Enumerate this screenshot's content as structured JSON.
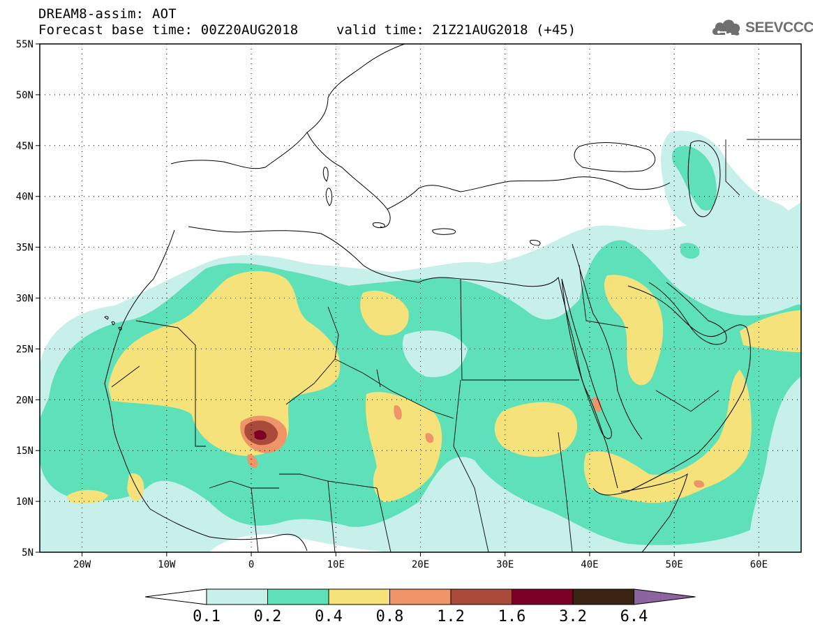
{
  "header": {
    "title": "DREAM8-assim: AOT",
    "base_time": "Forecast base time: 00Z20AUG2018",
    "valid_time": "valid time: 21Z21AUG2018 (+45)"
  },
  "logo": {
    "text": "SEEVCCC",
    "icon": "cloud-logo-icon"
  },
  "map": {
    "lon_range": [
      -25,
      65
    ],
    "lat_range": [
      5,
      55
    ],
    "lat_ticks": [
      {
        "value": 5,
        "label": "5N"
      },
      {
        "value": 10,
        "label": "10N"
      },
      {
        "value": 15,
        "label": "15N"
      },
      {
        "value": 20,
        "label": "20N"
      },
      {
        "value": 25,
        "label": "25N"
      },
      {
        "value": 30,
        "label": "30N"
      },
      {
        "value": 35,
        "label": "35N"
      },
      {
        "value": 40,
        "label": "40N"
      },
      {
        "value": 45,
        "label": "45N"
      },
      {
        "value": 50,
        "label": "50N"
      },
      {
        "value": 55,
        "label": "55N"
      }
    ],
    "lon_ticks": [
      {
        "value": -20,
        "label": "20W"
      },
      {
        "value": -10,
        "label": "10W"
      },
      {
        "value": 0,
        "label": "0"
      },
      {
        "value": 10,
        "label": "10E"
      },
      {
        "value": 20,
        "label": "20E"
      },
      {
        "value": 30,
        "label": "30E"
      },
      {
        "value": 40,
        "label": "40E"
      },
      {
        "value": 50,
        "label": "50E"
      },
      {
        "value": 60,
        "label": "60E"
      }
    ],
    "grid": "dotted"
  },
  "colorbar": {
    "levels": [
      "0.1",
      "0.2",
      "0.4",
      "0.8",
      "1.2",
      "1.6",
      "3.2",
      "6.4"
    ],
    "colors": [
      "#ffffff",
      "#c8f0ea",
      "#5ee0b8",
      "#f5e27a",
      "#ee9466",
      "#aa4a3a",
      "#7a0026",
      "#3a2414",
      "#8c64a0"
    ]
  }
}
